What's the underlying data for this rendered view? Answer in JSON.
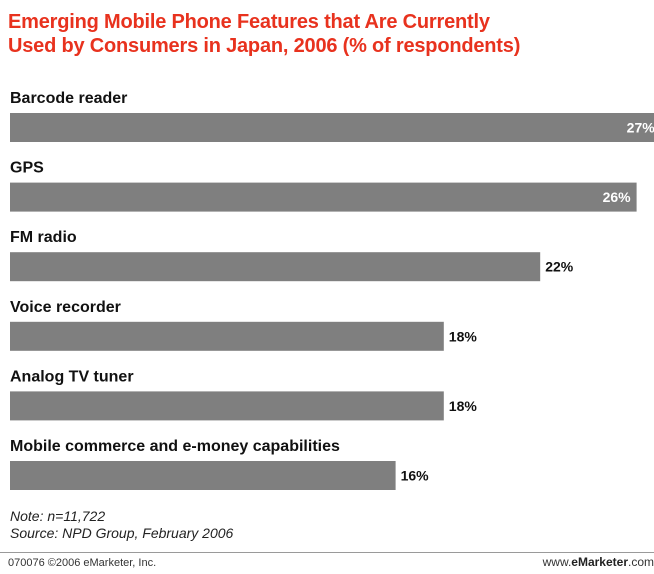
{
  "header": {
    "title_line1": "Emerging Mobile Phone Features that Are Currently",
    "title_line2": "Used by Consumers in Japan, 2006 (% of respondents)"
  },
  "chart_data": {
    "type": "bar",
    "orientation": "horizontal",
    "title": "Emerging Mobile Phone Features that Are Currently Used by Consumers in Japan, 2006 (% of respondents)",
    "categories": [
      "Barcode reader",
      "GPS",
      "FM radio",
      "Voice recorder",
      "Analog TV tuner",
      "Mobile commerce and e-money capabilities"
    ],
    "values": [
      27,
      26,
      22,
      18,
      18,
      16
    ],
    "value_labels": [
      "27%",
      "26%",
      "22%",
      "18%",
      "18%",
      "16%"
    ],
    "unit": "%",
    "bar_color": "#7f7f7f",
    "grid": false,
    "legend": "none"
  },
  "footer": {
    "note_prefix": "Note: ",
    "note_var": "n",
    "note_value": "=11,722",
    "source": "Source: NPD Group, February 2006",
    "copyright": "070076 ©2006 eMarketer, Inc.",
    "brand_prefix": "www.",
    "brand_bold": "eMarketer",
    "brand_suffix": ".com"
  },
  "colors": {
    "title": "#e8321e",
    "bar": "#7f7f7f",
    "label_inside": "#ffffff",
    "label_outside": "#111111"
  }
}
